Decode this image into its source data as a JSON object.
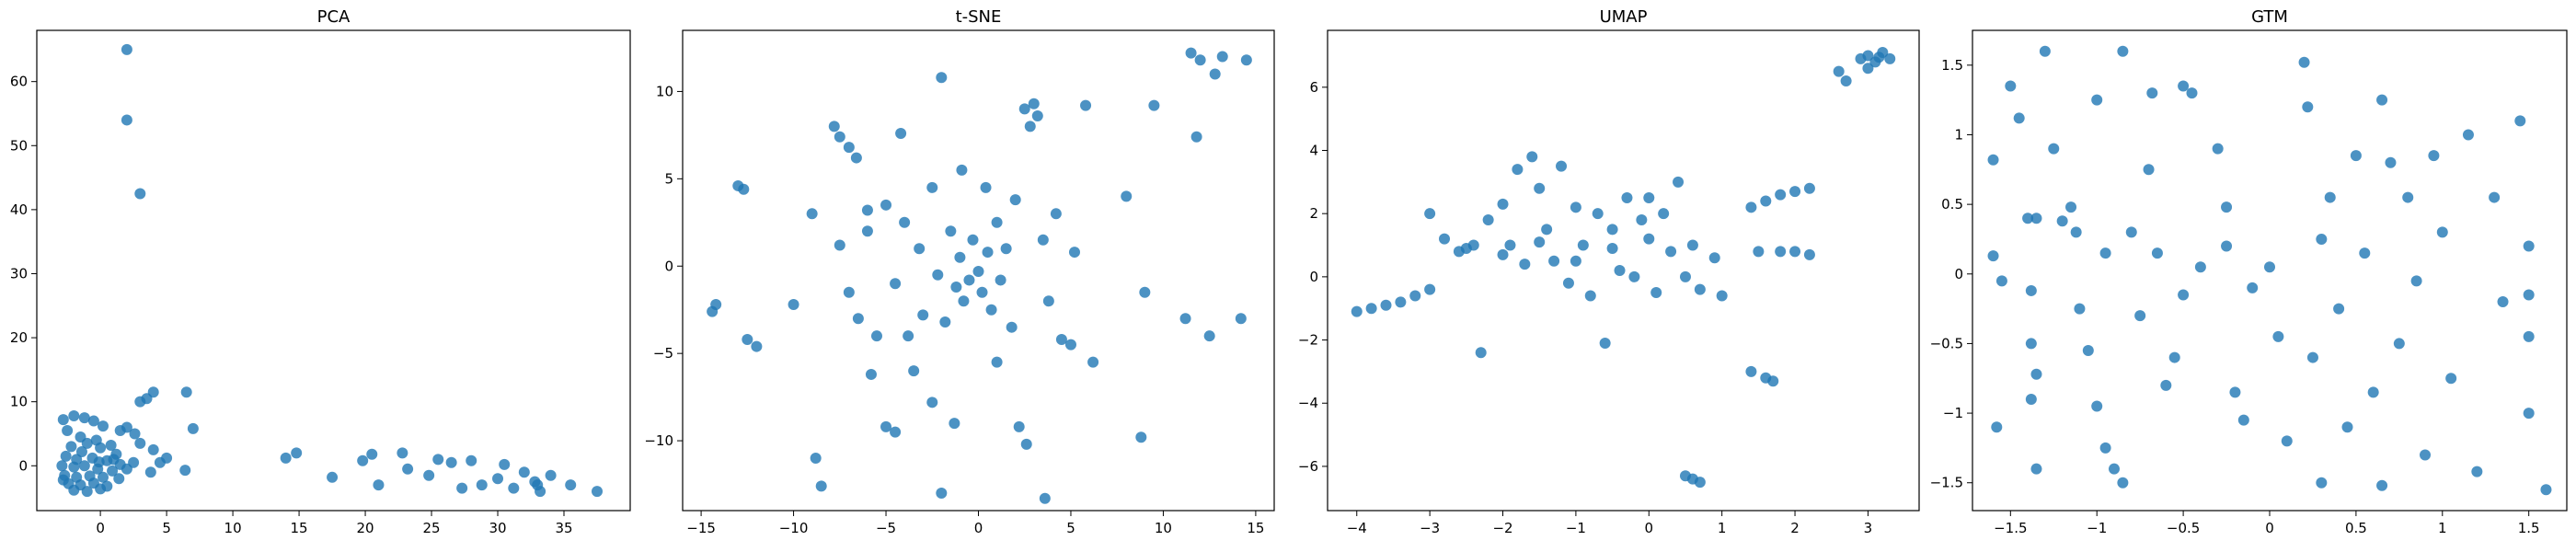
{
  "figure": {
    "point_color": "#1f77b4",
    "point_opacity": 0.8
  },
  "chart_data": [
    {
      "type": "scatter",
      "title": "PCA",
      "xlabel": "",
      "ylabel": "",
      "xlim": [
        -4.8,
        40
      ],
      "ylim": [
        -7,
        68
      ],
      "xticks": [
        0,
        5,
        10,
        15,
        20,
        25,
        30,
        35
      ],
      "yticks": [
        0,
        10,
        20,
        30,
        40,
        50,
        60
      ],
      "grid": false,
      "points": [
        [
          2.0,
          65
        ],
        [
          2.0,
          54
        ],
        [
          3.0,
          42.5
        ],
        [
          4.0,
          11.5
        ],
        [
          3.5,
          10.5
        ],
        [
          3.0,
          10.0
        ],
        [
          6.5,
          11.5
        ],
        [
          7.0,
          5.8
        ],
        [
          6.4,
          -0.7
        ],
        [
          2.0,
          6.0
        ],
        [
          1.5,
          5.5
        ],
        [
          3.0,
          3.5
        ],
        [
          4.0,
          2.5
        ],
        [
          5.0,
          1.2
        ],
        [
          3.8,
          -1.0
        ],
        [
          4.5,
          0.5
        ],
        [
          -2.8,
          7.2
        ],
        [
          -2.0,
          7.8
        ],
        [
          -1.2,
          7.5
        ],
        [
          -0.5,
          7.0
        ],
        [
          0.2,
          6.2
        ],
        [
          -2.5,
          5.5
        ],
        [
          -1.5,
          4.5
        ],
        [
          -2.2,
          3.0
        ],
        [
          -1.0,
          3.5
        ],
        [
          0.0,
          2.8
        ],
        [
          0.8,
          3.2
        ],
        [
          1.2,
          1.8
        ],
        [
          -2.6,
          1.5
        ],
        [
          -1.8,
          1.0
        ],
        [
          -0.6,
          1.2
        ],
        [
          0.5,
          0.8
        ],
        [
          1.5,
          0.2
        ],
        [
          -2.9,
          0.0
        ],
        [
          -2.0,
          -0.2
        ],
        [
          -1.2,
          0.0
        ],
        [
          -0.2,
          -0.5
        ],
        [
          0.9,
          -0.8
        ],
        [
          2.0,
          -0.5
        ],
        [
          -2.7,
          -1.5
        ],
        [
          -1.8,
          -1.8
        ],
        [
          -0.8,
          -1.6
        ],
        [
          0.2,
          -1.8
        ],
        [
          1.4,
          -2.0
        ],
        [
          -2.4,
          -2.8
        ],
        [
          -1.5,
          -3.0
        ],
        [
          -0.5,
          -2.7
        ],
        [
          0.5,
          -3.2
        ],
        [
          -2.0,
          -3.8
        ],
        [
          -1.0,
          -4.0
        ],
        [
          0.0,
          -3.6
        ],
        [
          -2.8,
          -2.2
        ],
        [
          -0.1,
          0.6
        ],
        [
          1.0,
          1.0
        ],
        [
          -1.4,
          2.2
        ],
        [
          -0.3,
          4.0
        ],
        [
          2.5,
          0.5
        ],
        [
          2.6,
          5.0
        ],
        [
          14.0,
          1.2
        ],
        [
          14.8,
          2.0
        ],
        [
          17.5,
          -1.8
        ],
        [
          19.8,
          0.8
        ],
        [
          20.5,
          1.8
        ],
        [
          21.0,
          -3.0
        ],
        [
          22.8,
          2.0
        ],
        [
          23.2,
          -0.5
        ],
        [
          24.8,
          -1.5
        ],
        [
          25.5,
          1.0
        ],
        [
          26.5,
          0.5
        ],
        [
          27.3,
          -3.5
        ],
        [
          28.0,
          0.8
        ],
        [
          28.8,
          -3.0
        ],
        [
          30.0,
          -2.0
        ],
        [
          30.5,
          0.2
        ],
        [
          31.2,
          -3.5
        ],
        [
          32.0,
          -1.0
        ],
        [
          32.8,
          -2.5
        ],
        [
          33.2,
          -4.0
        ],
        [
          34.0,
          -1.5
        ],
        [
          35.5,
          -3.0
        ],
        [
          37.5,
          -4.0
        ],
        [
          33.0,
          -3.0
        ]
      ]
    },
    {
      "type": "scatter",
      "title": "t-SNE",
      "xlabel": "",
      "ylabel": "",
      "xlim": [
        -16,
        16
      ],
      "ylim": [
        -14,
        13.5
      ],
      "xticks": [
        -15,
        -10,
        -5,
        0,
        5,
        10,
        15
      ],
      "yticks": [
        -10,
        -5,
        0,
        5,
        10
      ],
      "grid": false,
      "points": [
        [
          -13.0,
          4.6
        ],
        [
          -12.7,
          4.4
        ],
        [
          -14.4,
          -2.6
        ],
        [
          -14.2,
          -2.2
        ],
        [
          -12.5,
          -4.2
        ],
        [
          -12.0,
          -4.6
        ],
        [
          -8.8,
          -11.0
        ],
        [
          -8.5,
          -12.6
        ],
        [
          -7.8,
          8.0
        ],
        [
          -7.5,
          7.4
        ],
        [
          -7.0,
          6.8
        ],
        [
          -6.6,
          6.2
        ],
        [
          -7.5,
          1.2
        ],
        [
          -7.0,
          -1.5
        ],
        [
          -6.5,
          -3.0
        ],
        [
          -6.0,
          2.0
        ],
        [
          -5.5,
          -4.0
        ],
        [
          -5.8,
          -6.2
        ],
        [
          -5.0,
          3.5
        ],
        [
          -4.5,
          -1.0
        ],
        [
          -4.0,
          2.5
        ],
        [
          -4.2,
          7.6
        ],
        [
          -3.8,
          -4.0
        ],
        [
          -3.5,
          -6.0
        ],
        [
          -3.2,
          1.0
        ],
        [
          -3.0,
          -2.8
        ],
        [
          -2.5,
          4.5
        ],
        [
          -2.2,
          -0.5
        ],
        [
          -2.0,
          10.8
        ],
        [
          -2.0,
          -13.0
        ],
        [
          -1.8,
          -3.2
        ],
        [
          -1.5,
          2.0
        ],
        [
          -1.2,
          -1.2
        ],
        [
          -1.0,
          0.5
        ],
        [
          -0.8,
          -2.0
        ],
        [
          -0.5,
          -0.8
        ],
        [
          -0.3,
          1.5
        ],
        [
          0.0,
          -0.3
        ],
        [
          0.2,
          -1.5
        ],
        [
          0.5,
          0.8
        ],
        [
          0.7,
          -2.5
        ],
        [
          1.0,
          2.5
        ],
        [
          1.2,
          -0.8
        ],
        [
          1.5,
          1.0
        ],
        [
          1.8,
          -3.5
        ],
        [
          2.0,
          3.8
        ],
        [
          2.2,
          -9.2
        ],
        [
          2.6,
          -10.2
        ],
        [
          2.5,
          9.0
        ],
        [
          3.0,
          9.3
        ],
        [
          3.2,
          8.6
        ],
        [
          2.8,
          8.0
        ],
        [
          3.5,
          1.5
        ],
        [
          3.8,
          -2.0
        ],
        [
          4.2,
          3.0
        ],
        [
          4.5,
          -4.2
        ],
        [
          5.0,
          -4.5
        ],
        [
          5.2,
          0.8
        ],
        [
          5.8,
          9.2
        ],
        [
          6.2,
          -5.5
        ],
        [
          3.6,
          -13.3
        ],
        [
          8.8,
          -9.8
        ],
        [
          8.0,
          4.0
        ],
        [
          9.0,
          -1.5
        ],
        [
          9.5,
          9.2
        ],
        [
          11.2,
          -3.0
        ],
        [
          11.8,
          7.4
        ],
        [
          11.5,
          12.2
        ],
        [
          12.0,
          11.8
        ],
        [
          12.8,
          11.0
        ],
        [
          13.2,
          12.0
        ],
        [
          12.5,
          -4.0
        ],
        [
          14.2,
          -3.0
        ],
        [
          14.5,
          11.8
        ],
        [
          -5.0,
          -9.2
        ],
        [
          -4.5,
          -9.5
        ],
        [
          -10.0,
          -2.2
        ],
        [
          -9.0,
          3.0
        ],
        [
          -6.0,
          3.2
        ],
        [
          0.4,
          4.5
        ],
        [
          -0.9,
          5.5
        ],
        [
          -2.5,
          -7.8
        ],
        [
          1.0,
          -5.5
        ],
        [
          -1.3,
          -9.0
        ]
      ]
    },
    {
      "type": "scatter",
      "title": "UMAP",
      "xlabel": "",
      "ylabel": "",
      "xlim": [
        -4.4,
        3.7
      ],
      "ylim": [
        -7.4,
        7.8
      ],
      "xticks": [
        -4,
        -3,
        -2,
        -1,
        0,
        1,
        2,
        3
      ],
      "yticks": [
        -6,
        -4,
        -2,
        0,
        2,
        4,
        6
      ],
      "grid": false,
      "points": [
        [
          -4.0,
          -1.1
        ],
        [
          -3.8,
          -1.0
        ],
        [
          -3.6,
          -0.9
        ],
        [
          -3.4,
          -0.8
        ],
        [
          -3.2,
          -0.6
        ],
        [
          -3.0,
          -0.4
        ],
        [
          -3.0,
          2.0
        ],
        [
          -2.8,
          1.2
        ],
        [
          -2.6,
          0.8
        ],
        [
          -2.4,
          1.0
        ],
        [
          -2.3,
          -2.4
        ],
        [
          -2.2,
          1.8
        ],
        [
          -2.0,
          2.3
        ],
        [
          -1.9,
          1.0
        ],
        [
          -1.8,
          3.4
        ],
        [
          -1.7,
          0.4
        ],
        [
          -1.6,
          3.8
        ],
        [
          -1.5,
          2.8
        ],
        [
          -1.4,
          1.5
        ],
        [
          -1.3,
          0.5
        ],
        [
          -1.2,
          3.5
        ],
        [
          -1.1,
          -0.2
        ],
        [
          -1.0,
          2.2
        ],
        [
          -0.9,
          1.0
        ],
        [
          -0.8,
          -0.6
        ],
        [
          -0.7,
          2.0
        ],
        [
          -0.6,
          -2.1
        ],
        [
          -0.5,
          1.5
        ],
        [
          -0.4,
          0.2
        ],
        [
          -0.3,
          2.5
        ],
        [
          -0.2,
          0.0
        ],
        [
          -0.1,
          1.8
        ],
        [
          0.0,
          2.5
        ],
        [
          0.1,
          -0.5
        ],
        [
          0.2,
          2.0
        ],
        [
          0.3,
          0.8
        ],
        [
          0.4,
          3.0
        ],
        [
          0.5,
          0.0
        ],
        [
          0.6,
          1.0
        ],
        [
          0.7,
          -0.4
        ],
        [
          0.9,
          0.6
        ],
        [
          1.0,
          -0.6
        ],
        [
          -2.5,
          0.9
        ],
        [
          -2.0,
          0.7
        ],
        [
          -1.5,
          1.1
        ],
        [
          -1.0,
          0.5
        ],
        [
          -0.5,
          0.9
        ],
        [
          0.0,
          1.2
        ],
        [
          1.4,
          2.2
        ],
        [
          1.6,
          2.4
        ],
        [
          1.8,
          2.6
        ],
        [
          2.0,
          2.7
        ],
        [
          2.2,
          2.8
        ],
        [
          1.5,
          0.8
        ],
        [
          1.8,
          0.8
        ],
        [
          2.0,
          0.8
        ],
        [
          2.2,
          0.7
        ],
        [
          1.4,
          -3.0
        ],
        [
          1.6,
          -3.2
        ],
        [
          1.7,
          -3.3
        ],
        [
          0.5,
          -6.3
        ],
        [
          0.6,
          -6.4
        ],
        [
          0.7,
          -6.5
        ],
        [
          2.6,
          6.5
        ],
        [
          2.7,
          6.2
        ],
        [
          2.9,
          6.9
        ],
        [
          3.0,
          7.0
        ],
        [
          3.1,
          6.8
        ],
        [
          3.2,
          7.1
        ],
        [
          3.3,
          6.9
        ],
        [
          3.0,
          6.6
        ],
        [
          3.15,
          6.95
        ]
      ]
    },
    {
      "type": "scatter",
      "title": "GTM",
      "xlabel": "",
      "ylabel": "",
      "xlim": [
        -1.72,
        1.72
      ],
      "ylim": [
        -1.7,
        1.75
      ],
      "xticks": [
        -1.5,
        -1.0,
        -0.5,
        0.0,
        0.5,
        1.0,
        1.5
      ],
      "yticks": [
        -1.5,
        -1.0,
        -0.5,
        0.0,
        0.5,
        1.0,
        1.5
      ],
      "grid": false,
      "points": [
        [
          -1.6,
          0.82
        ],
        [
          -1.6,
          0.13
        ],
        [
          -1.55,
          -0.05
        ],
        [
          -1.58,
          -1.1
        ],
        [
          -1.5,
          1.35
        ],
        [
          -1.45,
          1.12
        ],
        [
          -1.4,
          0.4
        ],
        [
          -1.35,
          0.4
        ],
        [
          -1.38,
          -0.12
        ],
        [
          -1.38,
          -0.5
        ],
        [
          -1.35,
          -0.72
        ],
        [
          -1.38,
          -0.9
        ],
        [
          -1.35,
          -1.4
        ],
        [
          -1.3,
          1.6
        ],
        [
          -1.25,
          0.9
        ],
        [
          -1.2,
          0.38
        ],
        [
          -1.15,
          0.48
        ],
        [
          -1.12,
          0.3
        ],
        [
          -1.1,
          -0.25
        ],
        [
          -1.05,
          -0.55
        ],
        [
          -1.0,
          1.25
        ],
        [
          -1.0,
          -0.95
        ],
        [
          -0.95,
          -1.25
        ],
        [
          -0.9,
          -1.4
        ],
        [
          -0.85,
          -1.5
        ],
        [
          -0.85,
          1.6
        ],
        [
          -0.8,
          0.3
        ],
        [
          -0.75,
          -0.3
        ],
        [
          -0.7,
          0.75
        ],
        [
          -0.68,
          1.3
        ],
        [
          -0.6,
          -0.8
        ],
        [
          -0.55,
          -0.6
        ],
        [
          -0.5,
          1.35
        ],
        [
          -0.45,
          1.3
        ],
        [
          -0.5,
          -0.15
        ],
        [
          -0.4,
          0.05
        ],
        [
          -0.3,
          0.9
        ],
        [
          -0.25,
          0.48
        ],
        [
          -0.2,
          -0.85
        ],
        [
          -0.15,
          -1.05
        ],
        [
          -0.1,
          -0.1
        ],
        [
          0.0,
          0.05
        ],
        [
          0.1,
          -1.2
        ],
        [
          0.2,
          1.52
        ],
        [
          0.22,
          1.2
        ],
        [
          0.25,
          -0.6
        ],
        [
          0.3,
          -1.5
        ],
        [
          0.35,
          0.55
        ],
        [
          0.4,
          -0.25
        ],
        [
          0.45,
          -1.1
        ],
        [
          0.5,
          0.85
        ],
        [
          0.55,
          0.15
        ],
        [
          0.6,
          -0.85
        ],
        [
          0.65,
          -1.52
        ],
        [
          0.65,
          1.25
        ],
        [
          0.7,
          0.8
        ],
        [
          0.75,
          -0.5
        ],
        [
          0.8,
          0.55
        ],
        [
          0.85,
          -0.05
        ],
        [
          0.9,
          -1.3
        ],
        [
          0.95,
          0.85
        ],
        [
          1.0,
          0.3
        ],
        [
          1.05,
          -0.75
        ],
        [
          1.15,
          1.0
        ],
        [
          1.2,
          -1.42
        ],
        [
          1.3,
          0.55
        ],
        [
          1.35,
          -0.2
        ],
        [
          1.45,
          1.1
        ],
        [
          1.5,
          0.2
        ],
        [
          1.5,
          -0.15
        ],
        [
          1.5,
          -0.45
        ],
        [
          1.5,
          -1.0
        ],
        [
          1.6,
          -1.55
        ],
        [
          -0.25,
          0.2
        ],
        [
          0.05,
          -0.45
        ],
        [
          -0.95,
          0.15
        ],
        [
          -0.65,
          0.15
        ],
        [
          0.3,
          0.25
        ]
      ]
    }
  ]
}
